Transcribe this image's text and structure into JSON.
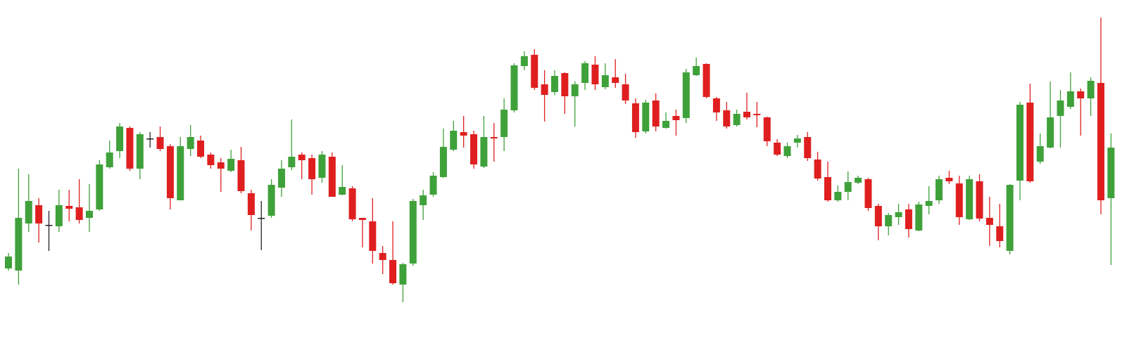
{
  "chart_data": {
    "type": "candlestick",
    "up_color": "#3fa13a",
    "down_color": "#df1f1f",
    "doji_color": "#222222",
    "ylim": [
      -8,
      500
    ],
    "open": [
      118,
      115,
      182,
      208,
      180,
      178,
      207,
      205,
      190,
      202,
      262,
      285,
      318,
      260,
      303,
      305,
      292,
      215,
      288,
      300,
      280,
      269,
      257,
      272,
      225,
      190,
      193,
      233,
      262,
      280,
      275,
      247,
      277,
      223,
      232,
      190,
      185,
      140,
      130,
      95,
      125,
      208,
      223,
      248,
      287,
      312,
      309,
      263,
      305,
      305,
      343,
      406,
      422,
      380,
      369,
      396,
      363,
      382,
      408,
      376,
      390,
      380,
      353,
      313,
      357,
      318,
      335,
      332,
      393,
      409,
      360,
      343,
      322,
      341,
      338,
      333,
      297,
      278,
      297,
      305,
      273,
      248,
      215,
      227,
      240,
      245,
      207,
      178,
      191,
      202,
      172,
      207,
      215,
      247,
      239,
      188,
      242,
      190,
      178,
      143,
      243,
      354,
      270,
      290,
      335,
      348,
      370,
      360,
      382,
      218
    ],
    "high": [
      140,
      260,
      252,
      218,
      200,
      230,
      230,
      245,
      238,
      272,
      300,
      325,
      320,
      312,
      312,
      320,
      295,
      305,
      322,
      307,
      283,
      275,
      287,
      291,
      230,
      214,
      245,
      272,
      330,
      283,
      280,
      285,
      283,
      265,
      235,
      190,
      218,
      150,
      185,
      126,
      217,
      230,
      255,
      317,
      328,
      335,
      314,
      335,
      325,
      360,
      410,
      427,
      430,
      400,
      400,
      397,
      384,
      413,
      420,
      410,
      416,
      395,
      360,
      358,
      367,
      340,
      344,
      402,
      418,
      410,
      362,
      355,
      344,
      368,
      355,
      334,
      302,
      297,
      308,
      312,
      284,
      270,
      236,
      256,
      250,
      247,
      210,
      197,
      210,
      210,
      213,
      235,
      250,
      257,
      250,
      250,
      252,
      220,
      210,
      238,
      355,
      381,
      310,
      384,
      372,
      397,
      374,
      390,
      475,
      310
    ],
    "low": [
      115,
      95,
      170,
      155,
      143,
      170,
      185,
      182,
      170,
      200,
      260,
      275,
      257,
      245,
      290,
      285,
      202,
      215,
      278,
      275,
      260,
      227,
      255,
      225,
      172,
      144,
      190,
      220,
      258,
      245,
      223,
      240,
      220,
      222,
      185,
      148,
      125,
      110,
      95,
      70,
      122,
      187,
      220,
      247,
      285,
      290,
      260,
      261,
      270,
      285,
      340,
      400,
      372,
      327,
      365,
      338,
      320,
      372,
      372,
      373,
      375,
      352,
      304,
      310,
      313,
      317,
      307,
      325,
      392,
      360,
      328,
      317,
      320,
      330,
      319,
      292,
      278,
      275,
      290,
      271,
      243,
      213,
      213,
      215,
      238,
      200,
      158,
      165,
      180,
      162,
      171,
      195,
      210,
      238,
      180,
      187,
      185,
      150,
      148,
      138,
      215,
      240,
      267,
      289,
      290,
      345,
      307,
      335,
      195,
      123
    ],
    "close": [
      135,
      190,
      214,
      182,
      180,
      208,
      203,
      187,
      200,
      266,
      283,
      320,
      260,
      309,
      303,
      288,
      218,
      292,
      305,
      277,
      265,
      260,
      274,
      228,
      194,
      190,
      237,
      260,
      277,
      272,
      245,
      280,
      220,
      234,
      188,
      187,
      143,
      130,
      97,
      124,
      214,
      222,
      250,
      291,
      314,
      307,
      266,
      305,
      303,
      344,
      407,
      420,
      375,
      365,
      392,
      363,
      380,
      410,
      380,
      393,
      382,
      357,
      312,
      354,
      320,
      328,
      329,
      397,
      406,
      362,
      340,
      320,
      338,
      333,
      336,
      299,
      280,
      292,
      303,
      275,
      246,
      215,
      227,
      241,
      247,
      204,
      178,
      194,
      198,
      174,
      209,
      214,
      245,
      242,
      191,
      245,
      189,
      180,
      157,
      237,
      351,
      242,
      292,
      333,
      357,
      370,
      360,
      385,
      215,
      290
    ]
  }
}
